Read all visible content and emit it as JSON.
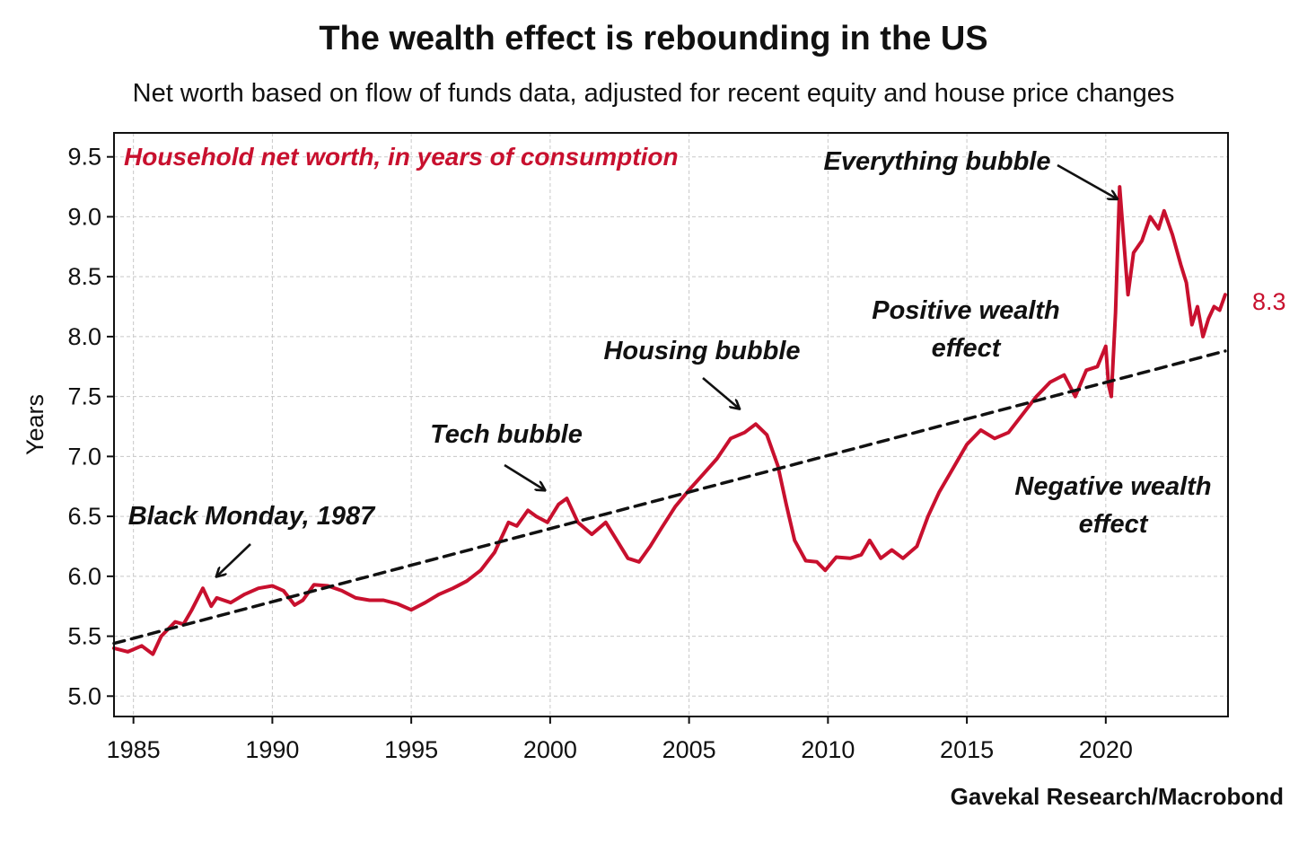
{
  "chart_data": {
    "type": "line",
    "title": "The wealth effect is rebounding in the US",
    "subtitle": "Net worth based on flow of funds data, adjusted for recent equity and house price changes",
    "ylabel": "Years",
    "xlabel": "",
    "source": "Gavekal Research/Macrobond",
    "xlim": [
      1984.3,
      2024.4
    ],
    "ylim": [
      4.83,
      9.7
    ],
    "x_ticks": [
      "1985",
      "1990",
      "1995",
      "2000",
      "2005",
      "2010",
      "2015",
      "2020"
    ],
    "y_ticks": [
      "5.0",
      "5.5",
      "6.0",
      "6.5",
      "7.0",
      "7.5",
      "8.0",
      "8.5",
      "9.0",
      "9.5"
    ],
    "grid": true,
    "series": [
      {
        "name": "Household net worth, in years of consumption",
        "color": "#c8102e",
        "points": [
          [
            1984.3,
            5.4
          ],
          [
            1984.8,
            5.37
          ],
          [
            1985.3,
            5.42
          ],
          [
            1985.7,
            5.35
          ],
          [
            1986.0,
            5.5
          ],
          [
            1986.5,
            5.62
          ],
          [
            1986.8,
            5.6
          ],
          [
            1987.1,
            5.72
          ],
          [
            1987.5,
            5.9
          ],
          [
            1987.8,
            5.75
          ],
          [
            1988.0,
            5.82
          ],
          [
            1988.5,
            5.78
          ],
          [
            1989.0,
            5.85
          ],
          [
            1989.5,
            5.9
          ],
          [
            1990.0,
            5.92
          ],
          [
            1990.4,
            5.88
          ],
          [
            1990.8,
            5.76
          ],
          [
            1991.1,
            5.8
          ],
          [
            1991.5,
            5.93
          ],
          [
            1992.0,
            5.92
          ],
          [
            1992.5,
            5.88
          ],
          [
            1993.0,
            5.82
          ],
          [
            1993.5,
            5.8
          ],
          [
            1994.0,
            5.8
          ],
          [
            1994.5,
            5.77
          ],
          [
            1995.0,
            5.72
          ],
          [
            1995.5,
            5.78
          ],
          [
            1996.0,
            5.85
          ],
          [
            1996.5,
            5.9
          ],
          [
            1997.0,
            5.96
          ],
          [
            1997.5,
            6.05
          ],
          [
            1998.0,
            6.2
          ],
          [
            1998.5,
            6.45
          ],
          [
            1998.8,
            6.42
          ],
          [
            1999.2,
            6.55
          ],
          [
            1999.5,
            6.5
          ],
          [
            1999.9,
            6.45
          ],
          [
            2000.3,
            6.6
          ],
          [
            2000.6,
            6.65
          ],
          [
            2001.0,
            6.45
          ],
          [
            2001.5,
            6.35
          ],
          [
            2002.0,
            6.45
          ],
          [
            2002.4,
            6.3
          ],
          [
            2002.8,
            6.15
          ],
          [
            2003.2,
            6.12
          ],
          [
            2003.6,
            6.25
          ],
          [
            2004.0,
            6.4
          ],
          [
            2004.5,
            6.58
          ],
          [
            2005.0,
            6.72
          ],
          [
            2005.5,
            6.85
          ],
          [
            2006.0,
            6.98
          ],
          [
            2006.5,
            7.15
          ],
          [
            2007.0,
            7.2
          ],
          [
            2007.4,
            7.27
          ],
          [
            2007.8,
            7.18
          ],
          [
            2008.2,
            6.92
          ],
          [
            2008.5,
            6.6
          ],
          [
            2008.8,
            6.3
          ],
          [
            2009.2,
            6.13
          ],
          [
            2009.6,
            6.12
          ],
          [
            2009.9,
            6.05
          ],
          [
            2010.3,
            6.16
          ],
          [
            2010.8,
            6.15
          ],
          [
            2011.2,
            6.18
          ],
          [
            2011.5,
            6.3
          ],
          [
            2011.9,
            6.15
          ],
          [
            2012.3,
            6.22
          ],
          [
            2012.7,
            6.15
          ],
          [
            2013.2,
            6.25
          ],
          [
            2013.6,
            6.5
          ],
          [
            2014.0,
            6.7
          ],
          [
            2014.5,
            6.9
          ],
          [
            2015.0,
            7.1
          ],
          [
            2015.5,
            7.22
          ],
          [
            2016.0,
            7.15
          ],
          [
            2016.5,
            7.2
          ],
          [
            2017.0,
            7.35
          ],
          [
            2017.5,
            7.5
          ],
          [
            2018.0,
            7.62
          ],
          [
            2018.5,
            7.68
          ],
          [
            2018.9,
            7.5
          ],
          [
            2019.3,
            7.72
          ],
          [
            2019.7,
            7.75
          ],
          [
            2020.0,
            7.92
          ],
          [
            2020.1,
            7.6
          ],
          [
            2020.2,
            7.5
          ],
          [
            2020.35,
            8.2
          ],
          [
            2020.5,
            9.25
          ],
          [
            2020.65,
            8.8
          ],
          [
            2020.8,
            8.35
          ],
          [
            2021.0,
            8.7
          ],
          [
            2021.3,
            8.8
          ],
          [
            2021.6,
            9.0
          ],
          [
            2021.9,
            8.9
          ],
          [
            2022.1,
            9.05
          ],
          [
            2022.4,
            8.85
          ],
          [
            2022.7,
            8.6
          ],
          [
            2022.9,
            8.45
          ],
          [
            2023.1,
            8.1
          ],
          [
            2023.3,
            8.25
          ],
          [
            2023.5,
            8.0
          ],
          [
            2023.7,
            8.15
          ],
          [
            2023.9,
            8.25
          ],
          [
            2024.1,
            8.22
          ],
          [
            2024.3,
            8.35
          ]
        ]
      },
      {
        "name": "",
        "color": "#111111",
        "dashed": true,
        "points": [
          [
            1984.3,
            5.44
          ],
          [
            2024.3,
            7.88
          ]
        ]
      }
    ],
    "annotations": [
      {
        "text": "Household net worth, in years of consumption",
        "color": "#c8102e"
      },
      {
        "text": "Black Monday, 1987",
        "arrow_to": [
          1988.0,
          6.0
        ]
      },
      {
        "text": "Tech bubble",
        "arrow_to": [
          1999.8,
          6.72
        ]
      },
      {
        "text": "Housing bubble",
        "arrow_to": [
          2006.8,
          7.4
        ]
      },
      {
        "text": "Everything bubble",
        "arrow_to": [
          2020.4,
          9.15
        ]
      },
      {
        "text": "Positive wealth effect"
      },
      {
        "text": "Negative wealth effect"
      }
    ],
    "last_value_label": "8.3",
    "last_value_color": "#c8102e"
  }
}
